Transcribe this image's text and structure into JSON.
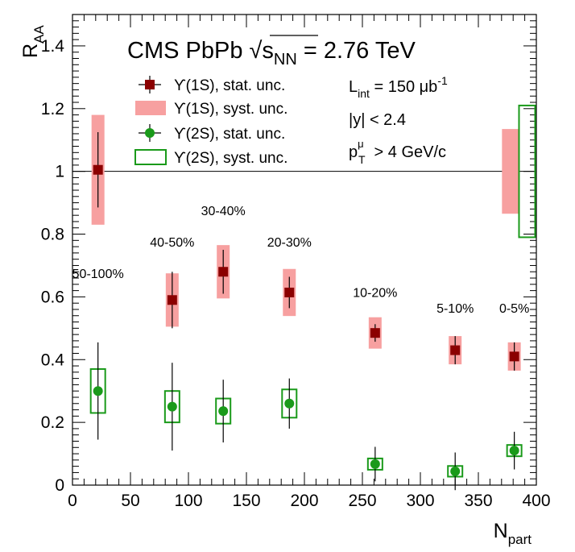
{
  "chart_data": {
    "type": "scatter",
    "title": "CMS PbPb √s",
    "title_sub": "NN",
    "title_energy": " = 2.76 TeV",
    "xlabel": "N",
    "xlabel_sub": "part",
    "ylabel": "R",
    "ylabel_sub": "AA",
    "xlim": [
      0,
      400
    ],
    "ylim": [
      0,
      1.5
    ],
    "xticks": [
      0,
      50,
      100,
      150,
      200,
      250,
      300,
      350,
      400
    ],
    "xtick_labels": [
      "0",
      "50",
      "100",
      "150",
      "200",
      "250",
      "300",
      "350",
      "400"
    ],
    "yticks": [
      0,
      0.2,
      0.4,
      0.6,
      0.8,
      1.0,
      1.2,
      1.4
    ],
    "ytick_labels": [
      "0",
      "0.2",
      "0.4",
      "0.6",
      "0.8",
      "1",
      "1.2",
      "1.4"
    ],
    "reference_line": 1.0,
    "info": {
      "lumi": "L",
      "lumi_sub": "int",
      "lumi_value": " = 150 μb",
      "lumi_sup": "-1",
      "rapidity": "|y| < 2.4",
      "pt": "p",
      "pt_sup": "μ",
      "pt_sub": "T",
      "pt_value": " > 4 GeV/c"
    },
    "legend": [
      {
        "key": "u1s_stat",
        "label": "ϒ(1S), stat. unc."
      },
      {
        "key": "u1s_syst",
        "label": "ϒ(1S), syst. unc."
      },
      {
        "key": "u2s_stat",
        "label": "ϒ(2S), stat. unc."
      },
      {
        "key": "u2s_syst",
        "label": "ϒ(2S), syst. unc."
      }
    ],
    "colors": {
      "u1s_marker": "#8b0000",
      "u1s_syst": "#f7a0a0",
      "u2s_marker": "#1a9a1a",
      "u2s_syst": "#1a9a1a"
    },
    "centrality_labels": [
      {
        "text": "50-100%",
        "x": 22,
        "y": 0.66
      },
      {
        "text": "40-50%",
        "x": 86,
        "y": 0.76
      },
      {
        "text": "30-40%",
        "x": 130,
        "y": 0.86
      },
      {
        "text": "20-30%",
        "x": 187,
        "y": 0.76
      },
      {
        "text": "10-20%",
        "x": 261,
        "y": 0.6
      },
      {
        "text": "5-10%",
        "x": 330,
        "y": 0.55
      },
      {
        "text": "0-5%",
        "x": 381,
        "y": 0.55
      }
    ],
    "series": [
      {
        "name": "ϒ(1S)",
        "points": [
          {
            "x": 22,
            "y": 1.005,
            "stat": 0.12,
            "syst": 0.175
          },
          {
            "x": 86,
            "y": 0.59,
            "stat": 0.09,
            "syst": 0.085
          },
          {
            "x": 130,
            "y": 0.68,
            "stat": 0.07,
            "syst": 0.085
          },
          {
            "x": 187,
            "y": 0.614,
            "stat": 0.05,
            "syst": 0.075
          },
          {
            "x": 261,
            "y": 0.485,
            "stat": 0.028,
            "syst": 0.05
          },
          {
            "x": 330,
            "y": 0.43,
            "stat": 0.045,
            "syst": 0.045
          },
          {
            "x": 381,
            "y": 0.41,
            "stat": 0.045,
            "syst": 0.045
          }
        ],
        "global_syst": {
          "x": 378,
          "low": 0.865,
          "high": 1.135
        }
      },
      {
        "name": "ϒ(2S)",
        "points": [
          {
            "x": 22,
            "y": 0.3,
            "stat": 0.155,
            "syst": 0.07
          },
          {
            "x": 86,
            "y": 0.25,
            "stat": 0.14,
            "syst": 0.05
          },
          {
            "x": 130,
            "y": 0.236,
            "stat": 0.1,
            "syst": 0.04
          },
          {
            "x": 187,
            "y": 0.26,
            "stat": 0.08,
            "syst": 0.045
          },
          {
            "x": 261,
            "y": 0.067,
            "stat": 0.055,
            "syst": 0.018
          },
          {
            "x": 330,
            "y": 0.044,
            "stat": 0.06,
            "syst": 0.017
          },
          {
            "x": 381,
            "y": 0.11,
            "stat": 0.06,
            "syst": 0.018
          }
        ],
        "global_syst": {
          "x": 392,
          "low": 0.79,
          "high": 1.21
        }
      }
    ]
  }
}
